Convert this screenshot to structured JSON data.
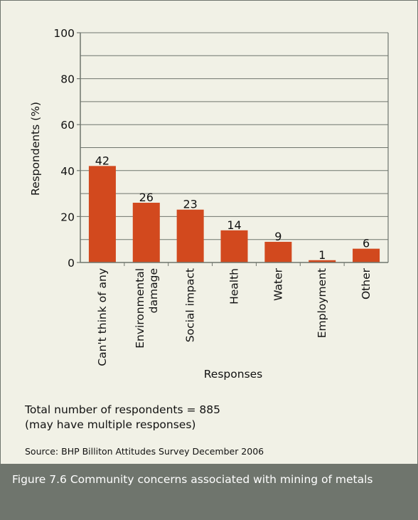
{
  "chart_data": {
    "type": "bar",
    "categories": [
      "Can't think of any",
      "Environmental damage",
      "Social impact",
      "Health",
      "Water",
      "Employment",
      "Other"
    ],
    "values": [
      42,
      26,
      23,
      14,
      9,
      1,
      6
    ],
    "data_labels": [
      "42",
      "26",
      "23",
      "14",
      "9",
      "1",
      "6"
    ],
    "xlabel": "Responses",
    "ylabel": "Respondents (%)",
    "ylim": [
      0,
      100
    ],
    "yticks": [
      "0",
      "20",
      "40",
      "60",
      "80",
      "100"
    ],
    "grid": true,
    "bar_color": "#d2491e"
  },
  "notes": {
    "line1": "Total number of respondents = 885",
    "line2": "(may have multiple responses)"
  },
  "source": "Source: BHP Billiton Attitudes Survey December 2006",
  "caption": "Figure 7.6  Community concerns associated with mining of metals",
  "colors": {
    "panel_background": "#f1f1e6",
    "caption_band": "#6f756d",
    "bar": "#d2491e"
  }
}
